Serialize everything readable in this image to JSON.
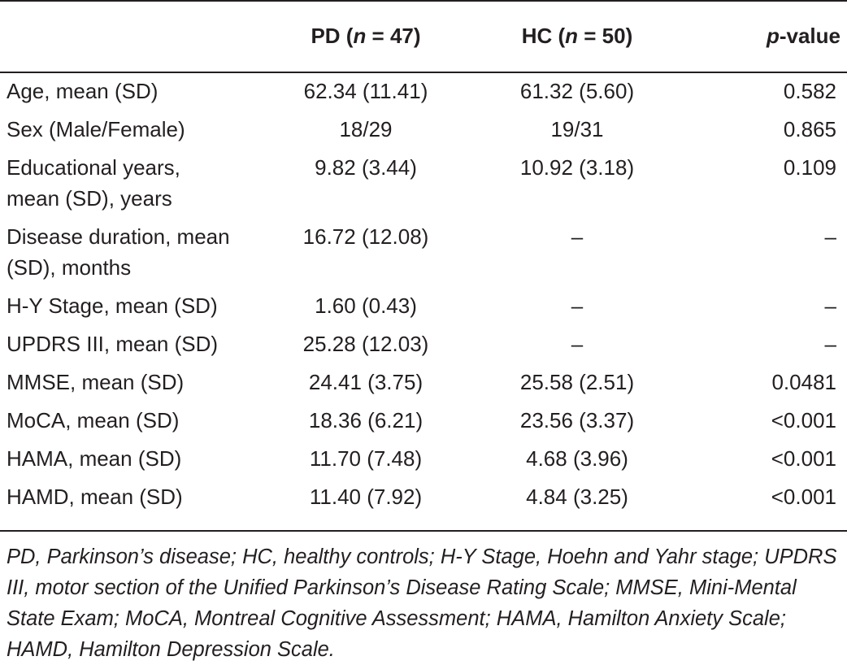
{
  "table": {
    "headers": {
      "col0": "",
      "pd_prefix": "PD (",
      "pd_n": "n",
      "pd_suffix": " = 47)",
      "hc_prefix": "HC (",
      "hc_n": "n",
      "hc_suffix": " = 50)",
      "pval_p": "p",
      "pval_suffix": "-value"
    },
    "rows": [
      {
        "label_lines": [
          "Age, mean (SD)"
        ],
        "pd": "62.34 (11.41)",
        "hc": "61.32 (5.60)",
        "p": "0.582"
      },
      {
        "label_lines": [
          "Sex (Male/Female)"
        ],
        "pd": "18/29",
        "hc": "19/31",
        "p": "0.865"
      },
      {
        "label_lines": [
          "Educational years,",
          "mean (SD), years"
        ],
        "pd": "9.82 (3.44)",
        "hc": "10.92 (3.18)",
        "p": "0.109"
      },
      {
        "label_lines": [
          "Disease duration, mean",
          "(SD), months"
        ],
        "pd": "16.72 (12.08)",
        "hc": "–",
        "p": "–"
      },
      {
        "label_lines": [
          "H-Y Stage, mean (SD)"
        ],
        "pd": "1.60 (0.43)",
        "hc": "–",
        "p": "–"
      },
      {
        "label_lines": [
          "UPDRS III, mean (SD)"
        ],
        "pd": "25.28 (12.03)",
        "hc": "–",
        "p": "–"
      },
      {
        "label_lines": [
          "MMSE, mean (SD)"
        ],
        "pd": "24.41 (3.75)",
        "hc": "25.58 (2.51)",
        "p": "0.0481"
      },
      {
        "label_lines": [
          "MoCA, mean (SD)"
        ],
        "pd": "18.36 (6.21)",
        "hc": "23.56 (3.37)",
        "p": "<0.001"
      },
      {
        "label_lines": [
          "HAMA, mean (SD)"
        ],
        "pd": "11.70 (7.48)",
        "hc": "4.68 (3.96)",
        "p": "<0.001"
      },
      {
        "label_lines": [
          "HAMD, mean (SD)"
        ],
        "pd": "11.40 (7.92)",
        "hc": "4.84 (3.25)",
        "p": "<0.001"
      }
    ]
  },
  "footnote": "PD, Parkinson’s disease; HC, healthy controls; H-Y Stage, Hoehn and Yahr stage; UPDRS III, motor section of the Unified Parkinson’s Disease Rating Scale; MMSE, Mini-Mental State Exam; MoCA, Montreal Cognitive Assessment; HAMA, Hamilton Anxiety Scale; HAMD, Hamilton Depression Scale."
}
